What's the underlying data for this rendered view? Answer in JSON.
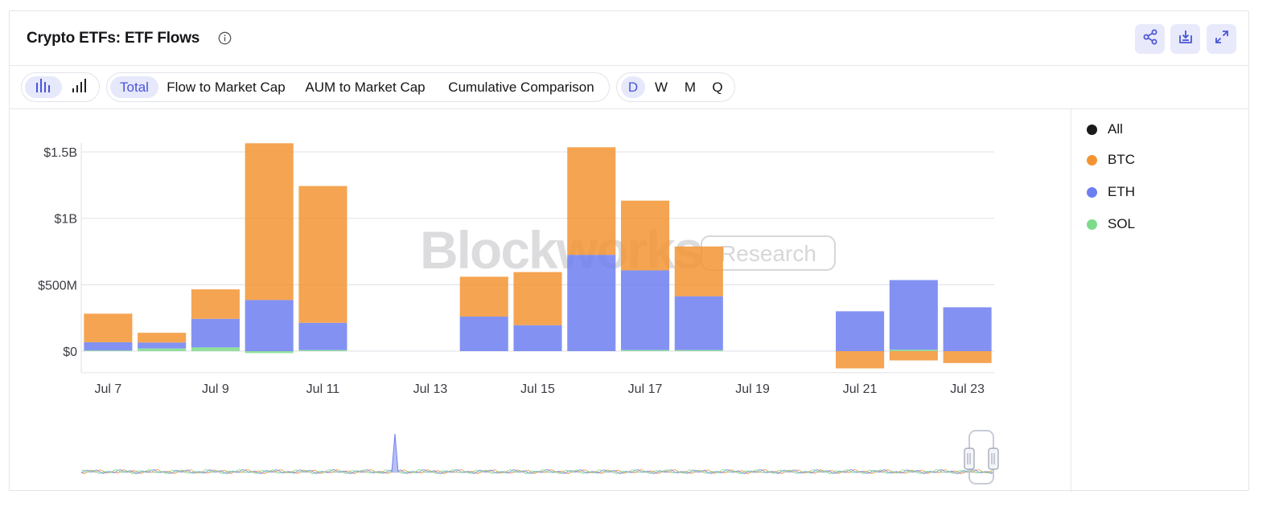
{
  "header": {
    "title": "Crypto ETFs: ETF Flows",
    "info_icon": "info-circle-icon",
    "share_icon": "share-icon",
    "download_icon": "download-icon",
    "expand_icon": "expand-icon"
  },
  "toolbar": {
    "chart_type_icons": [
      "bar-chart-icon",
      "signal-bars-icon"
    ],
    "metrics": [
      "Total",
      "Flow to Market Cap",
      "AUM to Market Cap",
      "Cumulative Comparison"
    ],
    "active_metric": "Total",
    "periods": [
      "D",
      "W",
      "M",
      "Q"
    ],
    "active_period": "D"
  },
  "watermark": {
    "brand": "Blockworks",
    "badge": "Research"
  },
  "legend": [
    {
      "label": "All",
      "color": "#1a1a1a"
    },
    {
      "label": "BTC",
      "color": "#f39433"
    },
    {
      "label": "ETH",
      "color": "#6d7ff0"
    },
    {
      "label": "SOL",
      "color": "#7ddc8a"
    }
  ],
  "chart_data": {
    "type": "bar",
    "stacked": true,
    "title": "Crypto ETFs: ETF Flows",
    "y_ticks": [
      "$0",
      "$500M",
      "$1B",
      "$1.5B"
    ],
    "y_tick_values": [
      0,
      500,
      1000,
      1500
    ],
    "ylim": [
      -150,
      1600
    ],
    "y_unit": "$M",
    "x_ticks": [
      "Jul 7",
      "Jul 9",
      "Jul 11",
      "Jul 13",
      "Jul 15",
      "Jul 17",
      "Jul 19",
      "Jul 21",
      "Jul 23"
    ],
    "categories": [
      "Jul 7",
      "Jul 8",
      "Jul 9",
      "Jul 10",
      "Jul 11",
      "Jul 12",
      "Jul 13",
      "Jul 14",
      "Jul 15",
      "Jul 16",
      "Jul 17",
      "Jul 18",
      "Jul 19",
      "Jul 20",
      "Jul 21",
      "Jul 22",
      "Jul 23"
    ],
    "series": [
      {
        "name": "SOL",
        "color": "#7ddc8a",
        "values": [
          5,
          20,
          28,
          -15,
          8,
          0,
          0,
          0,
          0,
          0,
          8,
          8,
          0,
          0,
          0,
          10,
          0
        ]
      },
      {
        "name": "ETH",
        "color": "#6d7ff0",
        "values": [
          62,
          45,
          215,
          385,
          205,
          0,
          0,
          260,
          195,
          725,
          600,
          405,
          0,
          0,
          300,
          525,
          330
        ]
      },
      {
        "name": "BTC",
        "color": "#f39433",
        "values": [
          215,
          73,
          222,
          1180,
          1030,
          0,
          0,
          300,
          400,
          810,
          525,
          375,
          0,
          0,
          -130,
          -70,
          -90
        ]
      }
    ],
    "grid": true,
    "legend_position": "right"
  }
}
